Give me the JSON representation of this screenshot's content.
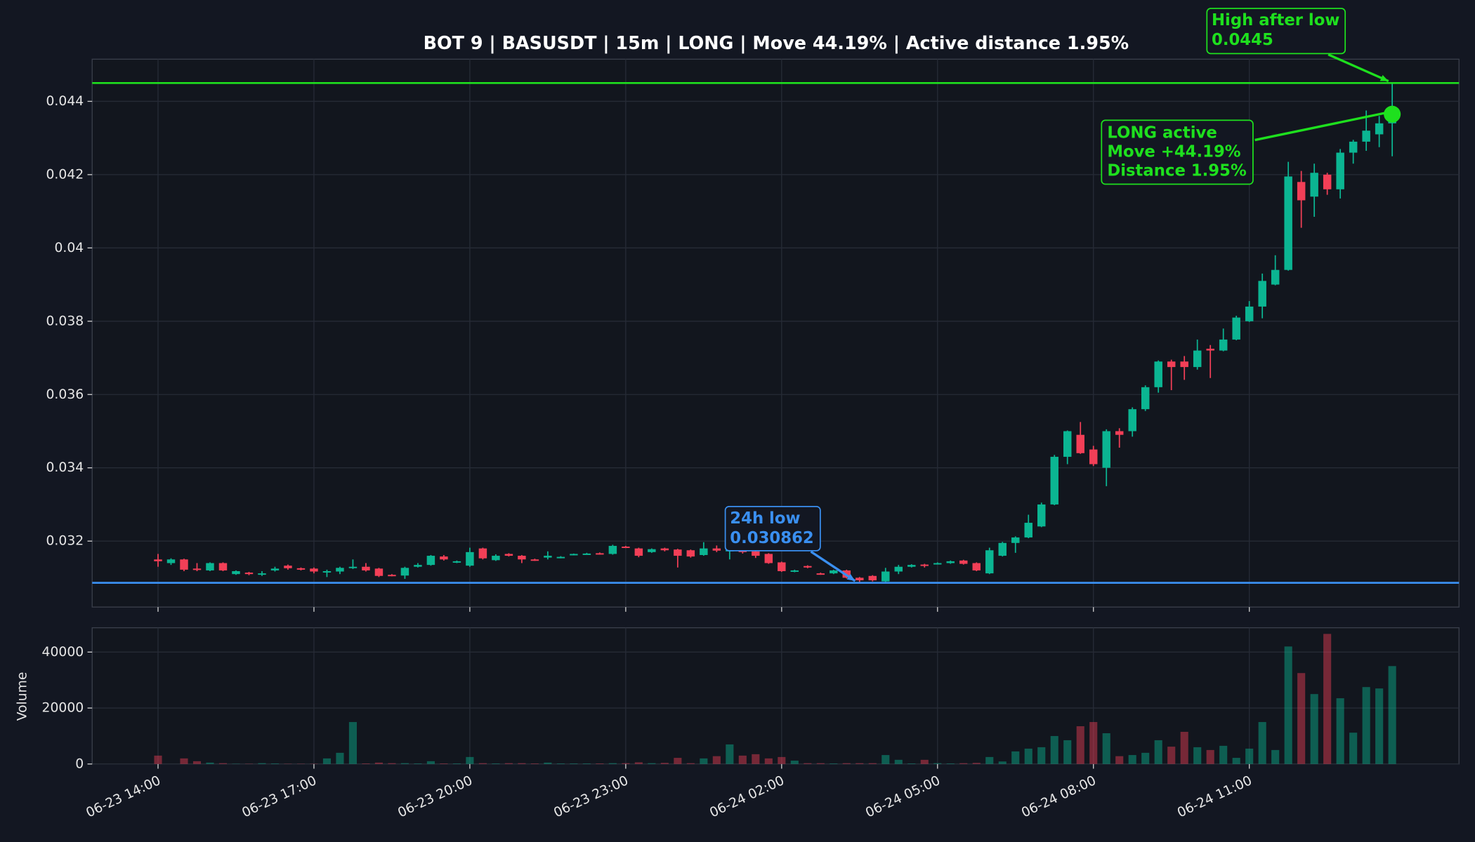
{
  "chart_data": {
    "type": "candlestick",
    "title": "BOT 9 | BASUSDT | 15m | LONG | Move 44.19% | Active distance 1.95%",
    "categories": [
      "06-23 14:00",
      null,
      null,
      null,
      null,
      null,
      null,
      null,
      null,
      null,
      null,
      null,
      "06-23 17:00",
      null,
      null,
      null,
      null,
      null,
      null,
      null,
      null,
      null,
      null,
      null,
      "06-23 20:00",
      null,
      null,
      null,
      null,
      null,
      null,
      null,
      null,
      null,
      null,
      null,
      "06-23 23:00",
      null,
      null,
      null,
      null,
      null,
      null,
      null,
      null,
      null,
      null,
      null,
      "06-24 02:00",
      null,
      null,
      null,
      null,
      null,
      null,
      null,
      null,
      null,
      null,
      null,
      "06-24 05:00",
      null,
      null,
      null,
      null,
      null,
      null,
      null,
      null,
      null,
      null,
      null,
      "06-24 08:00",
      null,
      null,
      null,
      null,
      null,
      null,
      null,
      null,
      null,
      null,
      null,
      "06-24 11:00",
      null,
      null,
      null,
      null,
      null,
      null,
      null,
      null,
      null,
      null,
      null
    ],
    "open": [
      0.0315,
      0.0314,
      0.0315,
      0.03125,
      0.0312,
      0.0314,
      0.0311,
      0.03114,
      0.0311,
      0.0312,
      0.03133,
      0.03126,
      0.03125,
      0.03116,
      0.03117,
      0.03127,
      0.0313,
      0.03125,
      0.03108,
      0.03106,
      0.0313,
      0.03135,
      0.03158,
      0.03142,
      0.03133,
      0.0318,
      0.03148,
      0.03165,
      0.0316,
      0.0315,
      0.03155,
      0.03155,
      0.03162,
      0.03165,
      0.03167,
      0.03165,
      0.03185,
      0.0318,
      0.0317,
      0.0318,
      0.03177,
      0.03175,
      0.03162,
      0.0318,
      0.03172,
      0.03176,
      0.03172,
      0.03165,
      0.03142,
      0.03117,
      0.03132,
      0.03112,
      0.03112,
      0.0312,
      0.031,
      0.03105,
      0.0309,
      0.03117,
      0.0313,
      0.03136,
      0.03138,
      0.0314,
      0.03147,
      0.0314,
      0.03112,
      0.0316,
      0.03195,
      0.0321,
      0.0324,
      0.033,
      0.0343,
      0.0349,
      0.0345,
      0.034,
      0.035,
      0.035,
      0.0356,
      0.0362,
      0.0369,
      0.0369,
      0.03675,
      0.03725,
      0.0372,
      0.0375,
      0.038,
      0.0384,
      0.039,
      0.0394,
      0.0418,
      0.0414,
      0.042,
      0.0416,
      0.0426,
      0.0429,
      0.0431,
      0.0434
    ],
    "high": [
      0.03165,
      0.03153,
      0.03152,
      0.0314,
      0.03142,
      0.03142,
      0.0312,
      0.03116,
      0.03118,
      0.0313,
      0.03136,
      0.03128,
      0.03128,
      0.03122,
      0.0313,
      0.0315,
      0.0314,
      0.03127,
      0.0311,
      0.0313,
      0.0314,
      0.03162,
      0.03162,
      0.03147,
      0.03182,
      0.03182,
      0.03164,
      0.03167,
      0.03162,
      0.03152,
      0.03172,
      0.03159,
      0.03166,
      0.03168,
      0.03169,
      0.0319,
      0.03187,
      0.03182,
      0.0318,
      0.03182,
      0.03179,
      0.03177,
      0.03197,
      0.03188,
      0.0318,
      0.03178,
      0.03174,
      0.03167,
      0.03144,
      0.03122,
      0.03134,
      0.03114,
      0.03122,
      0.03122,
      0.03102,
      0.03107,
      0.03127,
      0.03135,
      0.03137,
      0.03138,
      0.03142,
      0.03147,
      0.03149,
      0.03142,
      0.03182,
      0.03198,
      0.03213,
      0.03272,
      0.03305,
      0.03435,
      0.03502,
      0.03525,
      0.0346,
      0.03505,
      0.03508,
      0.03565,
      0.03625,
      0.03693,
      0.03695,
      0.03705,
      0.0375,
      0.03735,
      0.0378,
      0.03815,
      0.03855,
      0.0393,
      0.0398,
      0.04235,
      0.0421,
      0.0423,
      0.04205,
      0.0427,
      0.04295,
      0.04375,
      0.0436,
      0.0445
    ],
    "low": [
      0.0313,
      0.03135,
      0.03118,
      0.03118,
      0.03118,
      0.03118,
      0.03108,
      0.03107,
      0.03105,
      0.03117,
      0.03122,
      0.0312,
      0.03112,
      0.03102,
      0.0311,
      0.03124,
      0.03117,
      0.03102,
      0.03104,
      0.03097,
      0.03128,
      0.03133,
      0.03147,
      0.0314,
      0.0313,
      0.0315,
      0.03146,
      0.03158,
      0.0314,
      0.03146,
      0.0315,
      0.03153,
      0.03161,
      0.03163,
      0.03163,
      0.03163,
      0.03181,
      0.03156,
      0.03168,
      0.03172,
      0.03128,
      0.03155,
      0.0316,
      0.0317,
      0.0315,
      0.03166,
      0.03154,
      0.03138,
      0.03116,
      0.03115,
      0.03126,
      0.03108,
      0.0311,
      0.03098,
      0.030862,
      0.0309,
      0.03088,
      0.0311,
      0.03128,
      0.03128,
      0.03136,
      0.03138,
      0.03136,
      0.03118,
      0.0311,
      0.03158,
      0.03168,
      0.03208,
      0.03238,
      0.03298,
      0.0341,
      0.03438,
      0.03405,
      0.0335,
      0.03455,
      0.03485,
      0.03555,
      0.03605,
      0.03612,
      0.0364,
      0.03668,
      0.03645,
      0.03718,
      0.03748,
      0.03798,
      0.03808,
      0.03898,
      0.03938,
      0.04055,
      0.04085,
      0.04145,
      0.04135,
      0.0423,
      0.04265,
      0.04275,
      0.0425
    ],
    "close": [
      0.03145,
      0.0315,
      0.03122,
      0.03122,
      0.0314,
      0.0312,
      0.03118,
      0.0311,
      0.03112,
      0.03125,
      0.03126,
      0.03122,
      0.03117,
      0.03118,
      0.03127,
      0.0313,
      0.0312,
      0.03105,
      0.03106,
      0.03127,
      0.03135,
      0.0316,
      0.0315,
      0.03145,
      0.0317,
      0.03153,
      0.0316,
      0.0316,
      0.0315,
      0.03148,
      0.0316,
      0.03157,
      0.03165,
      0.03166,
      0.03165,
      0.03187,
      0.03183,
      0.0316,
      0.03178,
      0.03175,
      0.0316,
      0.03158,
      0.0318,
      0.03174,
      0.03176,
      0.0317,
      0.0316,
      0.0314,
      0.03118,
      0.0312,
      0.03128,
      0.0311,
      0.0312,
      0.031,
      0.03093,
      0.03093,
      0.03117,
      0.0313,
      0.03135,
      0.03134,
      0.0314,
      0.03145,
      0.03138,
      0.0312,
      0.03175,
      0.03195,
      0.0321,
      0.0325,
      0.033,
      0.0343,
      0.035,
      0.0344,
      0.0341,
      0.035,
      0.0349,
      0.0356,
      0.0362,
      0.0369,
      0.03675,
      0.03675,
      0.0372,
      0.0372,
      0.0375,
      0.0381,
      0.0384,
      0.0391,
      0.0394,
      0.04195,
      0.0413,
      0.04205,
      0.0416,
      0.0426,
      0.0429,
      0.0432,
      0.0434,
      0.04365
    ],
    "up_color": "#0bb592",
    "down_color": "#f23f57",
    "ylim": [
      0.0302,
      0.04515
    ],
    "yticks": [
      0.032,
      0.034,
      0.036,
      0.038,
      0.04,
      0.042,
      0.044
    ],
    "grid": true,
    "annotations": [
      {
        "label": "High after low",
        "value": 0.0445,
        "color": "#1ee01e"
      },
      {
        "label": "24h low",
        "value": 0.030862,
        "color": "#3a8ff0"
      }
    ],
    "status": {
      "lines": [
        "LONG active",
        "Move +44.19%",
        "Distance 1.95%"
      ],
      "color": "#1ee01e"
    },
    "volume": {
      "ylabel": "Volume",
      "values": [
        3000,
        0,
        2000,
        1000,
        500,
        300,
        100,
        100,
        300,
        200,
        100,
        100,
        100,
        2000,
        4000,
        15000,
        200,
        500,
        300,
        300,
        200,
        1000,
        200,
        200,
        2500,
        300,
        200,
        300,
        300,
        200,
        500,
        200,
        200,
        200,
        200,
        300,
        300,
        600,
        300,
        400,
        2200,
        300,
        2000,
        2800,
        7000,
        3000,
        3500,
        2000,
        2500,
        1200,
        300,
        300,
        200,
        300,
        300,
        300,
        3200,
        1500,
        200,
        1500,
        300,
        200,
        300,
        400,
        2500,
        900,
        4500,
        5500,
        6000,
        10000,
        8500,
        13500,
        15000,
        11000,
        2800,
        3200,
        4000,
        8500,
        6200,
        11500,
        6000,
        5000,
        6500,
        2200,
        5500,
        15000,
        5000,
        42000,
        32500,
        25000,
        46500,
        23500,
        11200,
        27500,
        27000,
        35000
      ],
      "ylim": [
        0,
        48700
      ],
      "yticks": [
        0,
        20000,
        40000
      ]
    }
  }
}
